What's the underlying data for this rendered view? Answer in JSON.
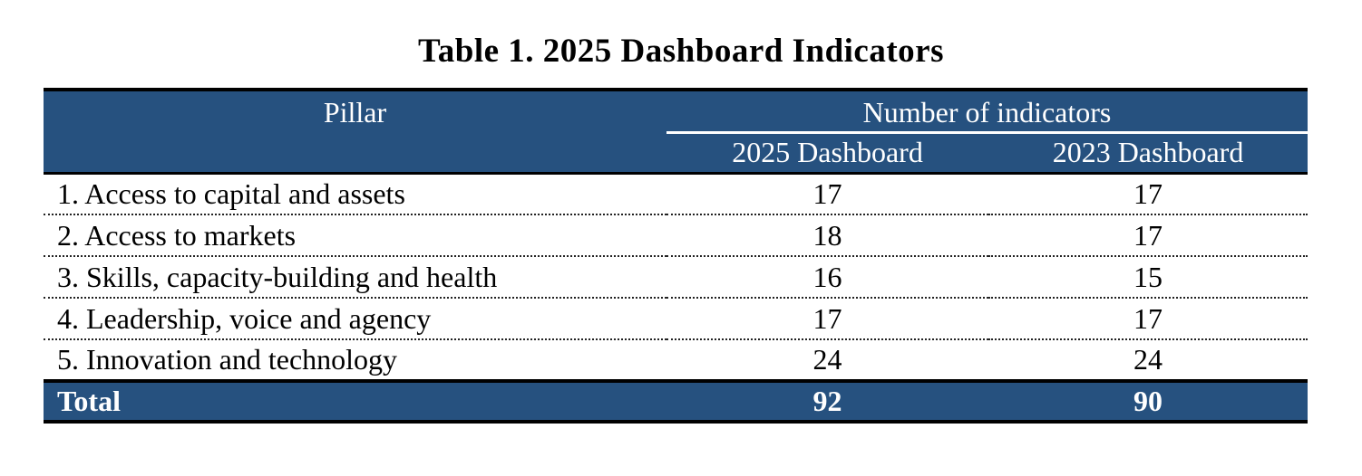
{
  "title": "Table 1. 2025 Dashboard Indicators",
  "table": {
    "col_pillar_header": "Pillar",
    "group_header": "Number of indicators",
    "sub_headers": [
      "2025 Dashboard",
      "2023 Dashboard"
    ],
    "rows": [
      {
        "pillar": "1. Access to capital and assets",
        "d2025": "17",
        "d2023": "17"
      },
      {
        "pillar": "2. Access to markets",
        "d2025": "18",
        "d2023": "17"
      },
      {
        "pillar": "3. Skills, capacity-building and health",
        "d2025": "16",
        "d2023": "15"
      },
      {
        "pillar": "4. Leadership, voice and agency",
        "d2025": "17",
        "d2023": "17"
      },
      {
        "pillar": "5. Innovation and technology",
        "d2025": "24",
        "d2023": "24"
      }
    ],
    "total": {
      "label": "Total",
      "d2025": "92",
      "d2023": "90"
    }
  },
  "colors": {
    "header_bg": "#26517F",
    "border_black": "#000000",
    "text_white": "#FFFFFF"
  }
}
